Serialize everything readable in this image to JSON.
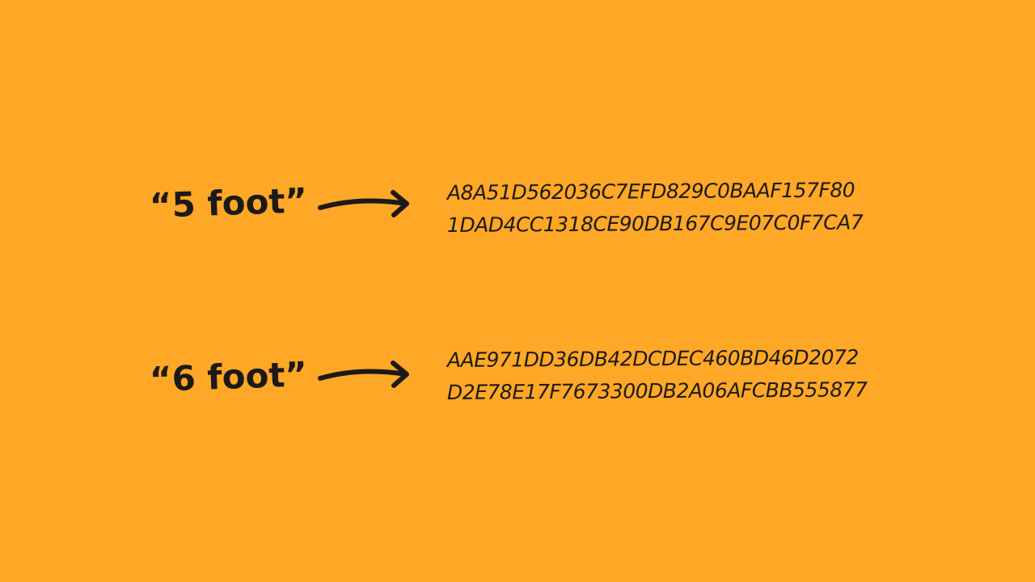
{
  "colors": {
    "background": "#FFA726",
    "ink": "#1C1A17"
  },
  "mappings": [
    {
      "input": "“5 foot”",
      "arrow_icon": "right-arrow-icon",
      "hash_lines": [
        "A8A51D562036C7EFD829C0BAAF157F80",
        "1DAD4CC1318CE90DB167C9E07C0F7CA7"
      ]
    },
    {
      "input": "“6 foot”",
      "arrow_icon": "right-arrow-icon",
      "hash_lines": [
        "AAE971DD36DB42DCDEC460BD46D2072",
        "D2E78E17F7673300DB2A06AFCBB555877"
      ]
    }
  ]
}
